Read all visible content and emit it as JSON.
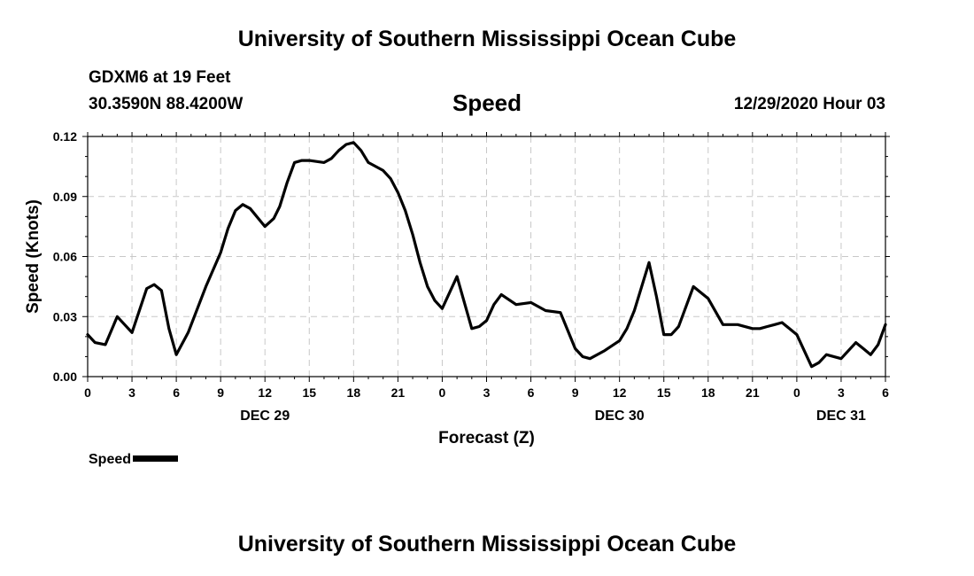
{
  "header": {
    "title_top": "University of Southern Mississippi Ocean Cube",
    "station": "GDXM6 at 19 Feet",
    "coords": "30.3590N 88.4200W",
    "chart_title": "Speed",
    "datetime": "12/29/2020 Hour 03"
  },
  "footer": {
    "title_bottom": "University of Southern Mississippi Ocean Cube"
  },
  "legend": {
    "label": "Speed"
  },
  "colors": {
    "line": "#000000",
    "grid": "#c8c8c8",
    "background": "#ffffff"
  },
  "chart_data": {
    "type": "line",
    "title": "Speed",
    "xlabel": "Forecast (Z)",
    "ylabel": "Speed (Knots)",
    "xlim": [
      0,
      54
    ],
    "ylim": [
      0,
      0.12
    ],
    "y_ticks": [
      "0.00",
      "0.03",
      "0.06",
      "0.09",
      "0.12"
    ],
    "x_tick_labels": [
      "0",
      "3",
      "6",
      "9",
      "12",
      "15",
      "18",
      "21",
      "0",
      "3",
      "6",
      "9",
      "12",
      "15",
      "18",
      "21",
      "0",
      "3",
      "6"
    ],
    "day_labels": [
      {
        "label": "DEC 29",
        "hour": 12
      },
      {
        "label": "DEC 30",
        "hour": 36
      },
      {
        "label": "DEC 31",
        "hour": 51
      }
    ],
    "grid": true,
    "series": [
      {
        "name": "Speed",
        "x": [
          0,
          0.5,
          1.2,
          2,
          3,
          4,
          4.5,
          5,
          5.5,
          6,
          6.8,
          8,
          9,
          9.5,
          10,
          10.5,
          11,
          12,
          12.6,
          13,
          13.5,
          14,
          14.5,
          15,
          16,
          16.5,
          17,
          17.5,
          18,
          18.5,
          19,
          20,
          20.5,
          21,
          21.5,
          22,
          22.5,
          23,
          23.5,
          24,
          25,
          26,
          26.5,
          27,
          27.5,
          28,
          29,
          30,
          31,
          32,
          32.5,
          33,
          33.5,
          34,
          35,
          36,
          36.5,
          37,
          38,
          38.5,
          39,
          39.5,
          40,
          41,
          42,
          43,
          44,
          45,
          45.5,
          46,
          46.5,
          47,
          48,
          48.5,
          49,
          49.5,
          50,
          51,
          52,
          52.5,
          53,
          53.5,
          54
        ],
        "values": [
          0.021,
          0.017,
          0.016,
          0.03,
          0.022,
          0.044,
          0.046,
          0.043,
          0.024,
          0.011,
          0.022,
          0.045,
          0.062,
          0.074,
          0.083,
          0.086,
          0.084,
          0.075,
          0.079,
          0.085,
          0.097,
          0.107,
          0.108,
          0.108,
          0.107,
          0.109,
          0.113,
          0.116,
          0.117,
          0.113,
          0.107,
          0.103,
          0.099,
          0.092,
          0.083,
          0.071,
          0.057,
          0.045,
          0.038,
          0.034,
          0.05,
          0.024,
          0.025,
          0.028,
          0.036,
          0.041,
          0.036,
          0.037,
          0.033,
          0.032,
          0.023,
          0.014,
          0.01,
          0.009,
          0.013,
          0.018,
          0.024,
          0.033,
          0.057,
          0.04,
          0.021,
          0.021,
          0.025,
          0.045,
          0.039,
          0.026,
          0.026,
          0.024,
          0.024,
          0.025,
          0.026,
          0.027,
          0.021,
          0.013,
          0.005,
          0.007,
          0.011,
          0.009,
          0.017,
          0.014,
          0.011,
          0.016,
          0.026
        ]
      }
    ]
  }
}
